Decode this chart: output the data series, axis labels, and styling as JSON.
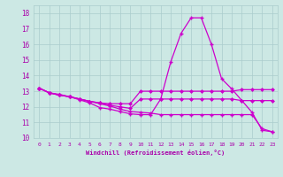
{
  "xlabel": "Windchill (Refroidissement éolien,°C)",
  "background_color": "#cce8e4",
  "grid_color": "#aacccc",
  "text_color": "#aa00aa",
  "line_color": "#cc00cc",
  "ylim": [
    10,
    18.5
  ],
  "xlim": [
    -0.5,
    23.5
  ],
  "yticks": [
    10,
    11,
    12,
    13,
    14,
    15,
    16,
    17,
    18
  ],
  "xticks": [
    0,
    1,
    2,
    3,
    4,
    5,
    6,
    7,
    8,
    9,
    10,
    11,
    12,
    13,
    14,
    15,
    16,
    17,
    18,
    19,
    20,
    21,
    22,
    23
  ],
  "line1_x": [
    0,
    1,
    2,
    3,
    4,
    5,
    6,
    7,
    8,
    9,
    10,
    11,
    12,
    13,
    14,
    15,
    16,
    17,
    18,
    19,
    20,
    21,
    22,
    23
  ],
  "line1_y": [
    13.2,
    12.9,
    12.8,
    12.65,
    12.45,
    12.25,
    11.95,
    11.85,
    11.7,
    11.55,
    11.5,
    11.5,
    12.5,
    14.9,
    16.7,
    17.7,
    17.7,
    16.0,
    13.8,
    13.15,
    12.4,
    11.65,
    10.5,
    10.4
  ],
  "line2_x": [
    0,
    1,
    2,
    3,
    4,
    5,
    6,
    7,
    8,
    9,
    10,
    11,
    12,
    13,
    14,
    15,
    16,
    17,
    18,
    19,
    20,
    21,
    22,
    23
  ],
  "line2_y": [
    13.2,
    12.9,
    12.75,
    12.65,
    12.5,
    12.35,
    12.25,
    12.2,
    12.2,
    12.2,
    13.0,
    13.0,
    13.0,
    13.0,
    13.0,
    13.0,
    13.0,
    13.0,
    13.0,
    13.0,
    13.1,
    13.1,
    13.1,
    13.1
  ],
  "line3_x": [
    0,
    1,
    2,
    3,
    4,
    5,
    6,
    7,
    8,
    9,
    10,
    11,
    12,
    13,
    14,
    15,
    16,
    17,
    18,
    19,
    20,
    21,
    22,
    23
  ],
  "line3_y": [
    13.2,
    12.9,
    12.75,
    12.65,
    12.5,
    12.35,
    12.25,
    12.1,
    12.0,
    11.9,
    12.5,
    12.5,
    12.5,
    12.5,
    12.5,
    12.5,
    12.5,
    12.5,
    12.5,
    12.5,
    12.4,
    12.4,
    12.4,
    12.4
  ],
  "line4_x": [
    0,
    1,
    2,
    3,
    4,
    5,
    6,
    7,
    8,
    9,
    10,
    11,
    12,
    13,
    14,
    15,
    16,
    17,
    18,
    19,
    20,
    21,
    22,
    23
  ],
  "line4_y": [
    13.2,
    12.9,
    12.75,
    12.65,
    12.5,
    12.35,
    12.2,
    12.05,
    11.85,
    11.7,
    11.65,
    11.6,
    11.5,
    11.5,
    11.5,
    11.5,
    11.5,
    11.5,
    11.5,
    11.5,
    11.5,
    11.5,
    10.6,
    10.4
  ]
}
